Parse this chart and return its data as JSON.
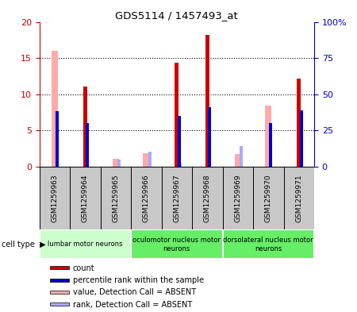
{
  "title": "GDS5114 / 1457493_at",
  "samples": [
    "GSM1259963",
    "GSM1259964",
    "GSM1259965",
    "GSM1259966",
    "GSM1259967",
    "GSM1259968",
    "GSM1259969",
    "GSM1259970",
    "GSM1259971"
  ],
  "count_values": [
    0,
    11.1,
    0,
    0,
    14.3,
    18.2,
    0,
    0,
    12.2
  ],
  "rank_values": [
    38,
    30,
    0,
    0,
    35,
    41,
    0,
    30,
    39
  ],
  "absent_value_values": [
    16.0,
    0,
    1.1,
    1.8,
    0,
    0,
    1.7,
    8.4,
    0
  ],
  "absent_rank_values": [
    0,
    0,
    5,
    10,
    2,
    0,
    14,
    0,
    0
  ],
  "ylim_left": [
    0,
    20
  ],
  "ylim_right": [
    0,
    100
  ],
  "yticks_left": [
    0,
    5,
    10,
    15,
    20
  ],
  "yticks_right": [
    0,
    25,
    50,
    75,
    100
  ],
  "ytick_labels_left": [
    "0",
    "5",
    "10",
    "15",
    "20"
  ],
  "ytick_labels_right": [
    "0",
    "25",
    "50",
    "75",
    "100%"
  ],
  "color_count": "#cc0000",
  "color_rank": "#0000cc",
  "color_absent_value": "#ffaaaa",
  "color_absent_rank": "#aaaaff",
  "groups": [
    {
      "label": "lumbar motor neurons",
      "start": 0,
      "end": 2,
      "color": "#ccffcc"
    },
    {
      "label": "oculomotor nucleus motor\nneurons",
      "start": 3,
      "end": 5,
      "color": "#66ee66"
    },
    {
      "label": "dorsolateral nucleus motor\nneurons",
      "start": 6,
      "end": 8,
      "color": "#66ee66"
    }
  ],
  "legend_items": [
    {
      "label": "count",
      "color": "#cc0000"
    },
    {
      "label": "percentile rank within the sample",
      "color": "#0000cc"
    },
    {
      "label": "value, Detection Call = ABSENT",
      "color": "#ffaaaa"
    },
    {
      "label": "rank, Detection Call = ABSENT",
      "color": "#aaaaff"
    }
  ],
  "bg_gray": "#c8c8c8",
  "plot_bg": "#ffffff"
}
